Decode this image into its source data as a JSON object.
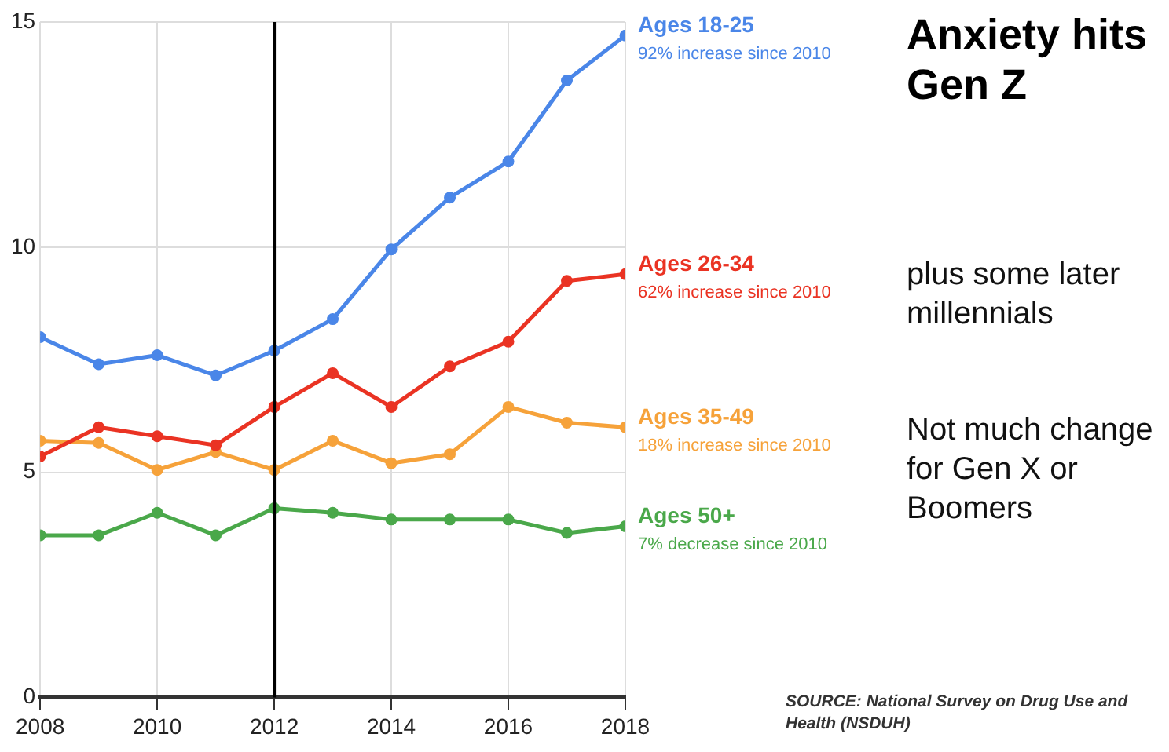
{
  "chart_data": {
    "type": "line",
    "title": "Anxiety hits Gen Z",
    "x": [
      2008,
      2009,
      2010,
      2011,
      2012,
      2013,
      2014,
      2015,
      2016,
      2017,
      2018
    ],
    "series": [
      {
        "name": "Ages 18-25",
        "color": "#4a86e8",
        "values": [
          8.0,
          7.4,
          7.6,
          7.15,
          7.7,
          8.4,
          9.95,
          11.1,
          11.9,
          13.7,
          14.7
        ]
      },
      {
        "name": "Ages 26-34",
        "color": "#ea3323",
        "values": [
          5.35,
          6.0,
          5.8,
          5.6,
          6.45,
          7.2,
          6.45,
          7.35,
          7.9,
          9.25,
          9.4
        ]
      },
      {
        "name": "Ages 35-49",
        "color": "#f6a23a",
        "values": [
          5.7,
          5.65,
          5.05,
          5.45,
          5.05,
          5.7,
          5.2,
          5.4,
          6.45,
          6.1,
          6.0
        ]
      },
      {
        "name": "Ages 50+",
        "color": "#4aa84a",
        "values": [
          3.6,
          3.6,
          4.1,
          3.6,
          4.2,
          4.1,
          3.95,
          3.95,
          3.95,
          3.65,
          3.8
        ]
      }
    ],
    "xlim": [
      2008,
      2018
    ],
    "xticks": [
      2008,
      2010,
      2012,
      2014,
      2016,
      2018
    ],
    "ylim": [
      0,
      15
    ],
    "yticks": [
      0,
      5,
      10,
      15
    ],
    "grid": true,
    "legend": false,
    "marker": "circle",
    "line_style": "solid",
    "ref_lines": [
      {
        "axis": "x",
        "value": 2012,
        "color": "#000000"
      }
    ],
    "annotations": [
      "92% increase since 2010",
      "62% increase since 2010",
      "18% increase since 2010",
      "7% decrease since 2010",
      "plus some later millennials",
      "Not much change for Gen X or Boomers",
      "SOURCE: National Survey on Drug Use and Health (NSDUH)"
    ]
  }
}
